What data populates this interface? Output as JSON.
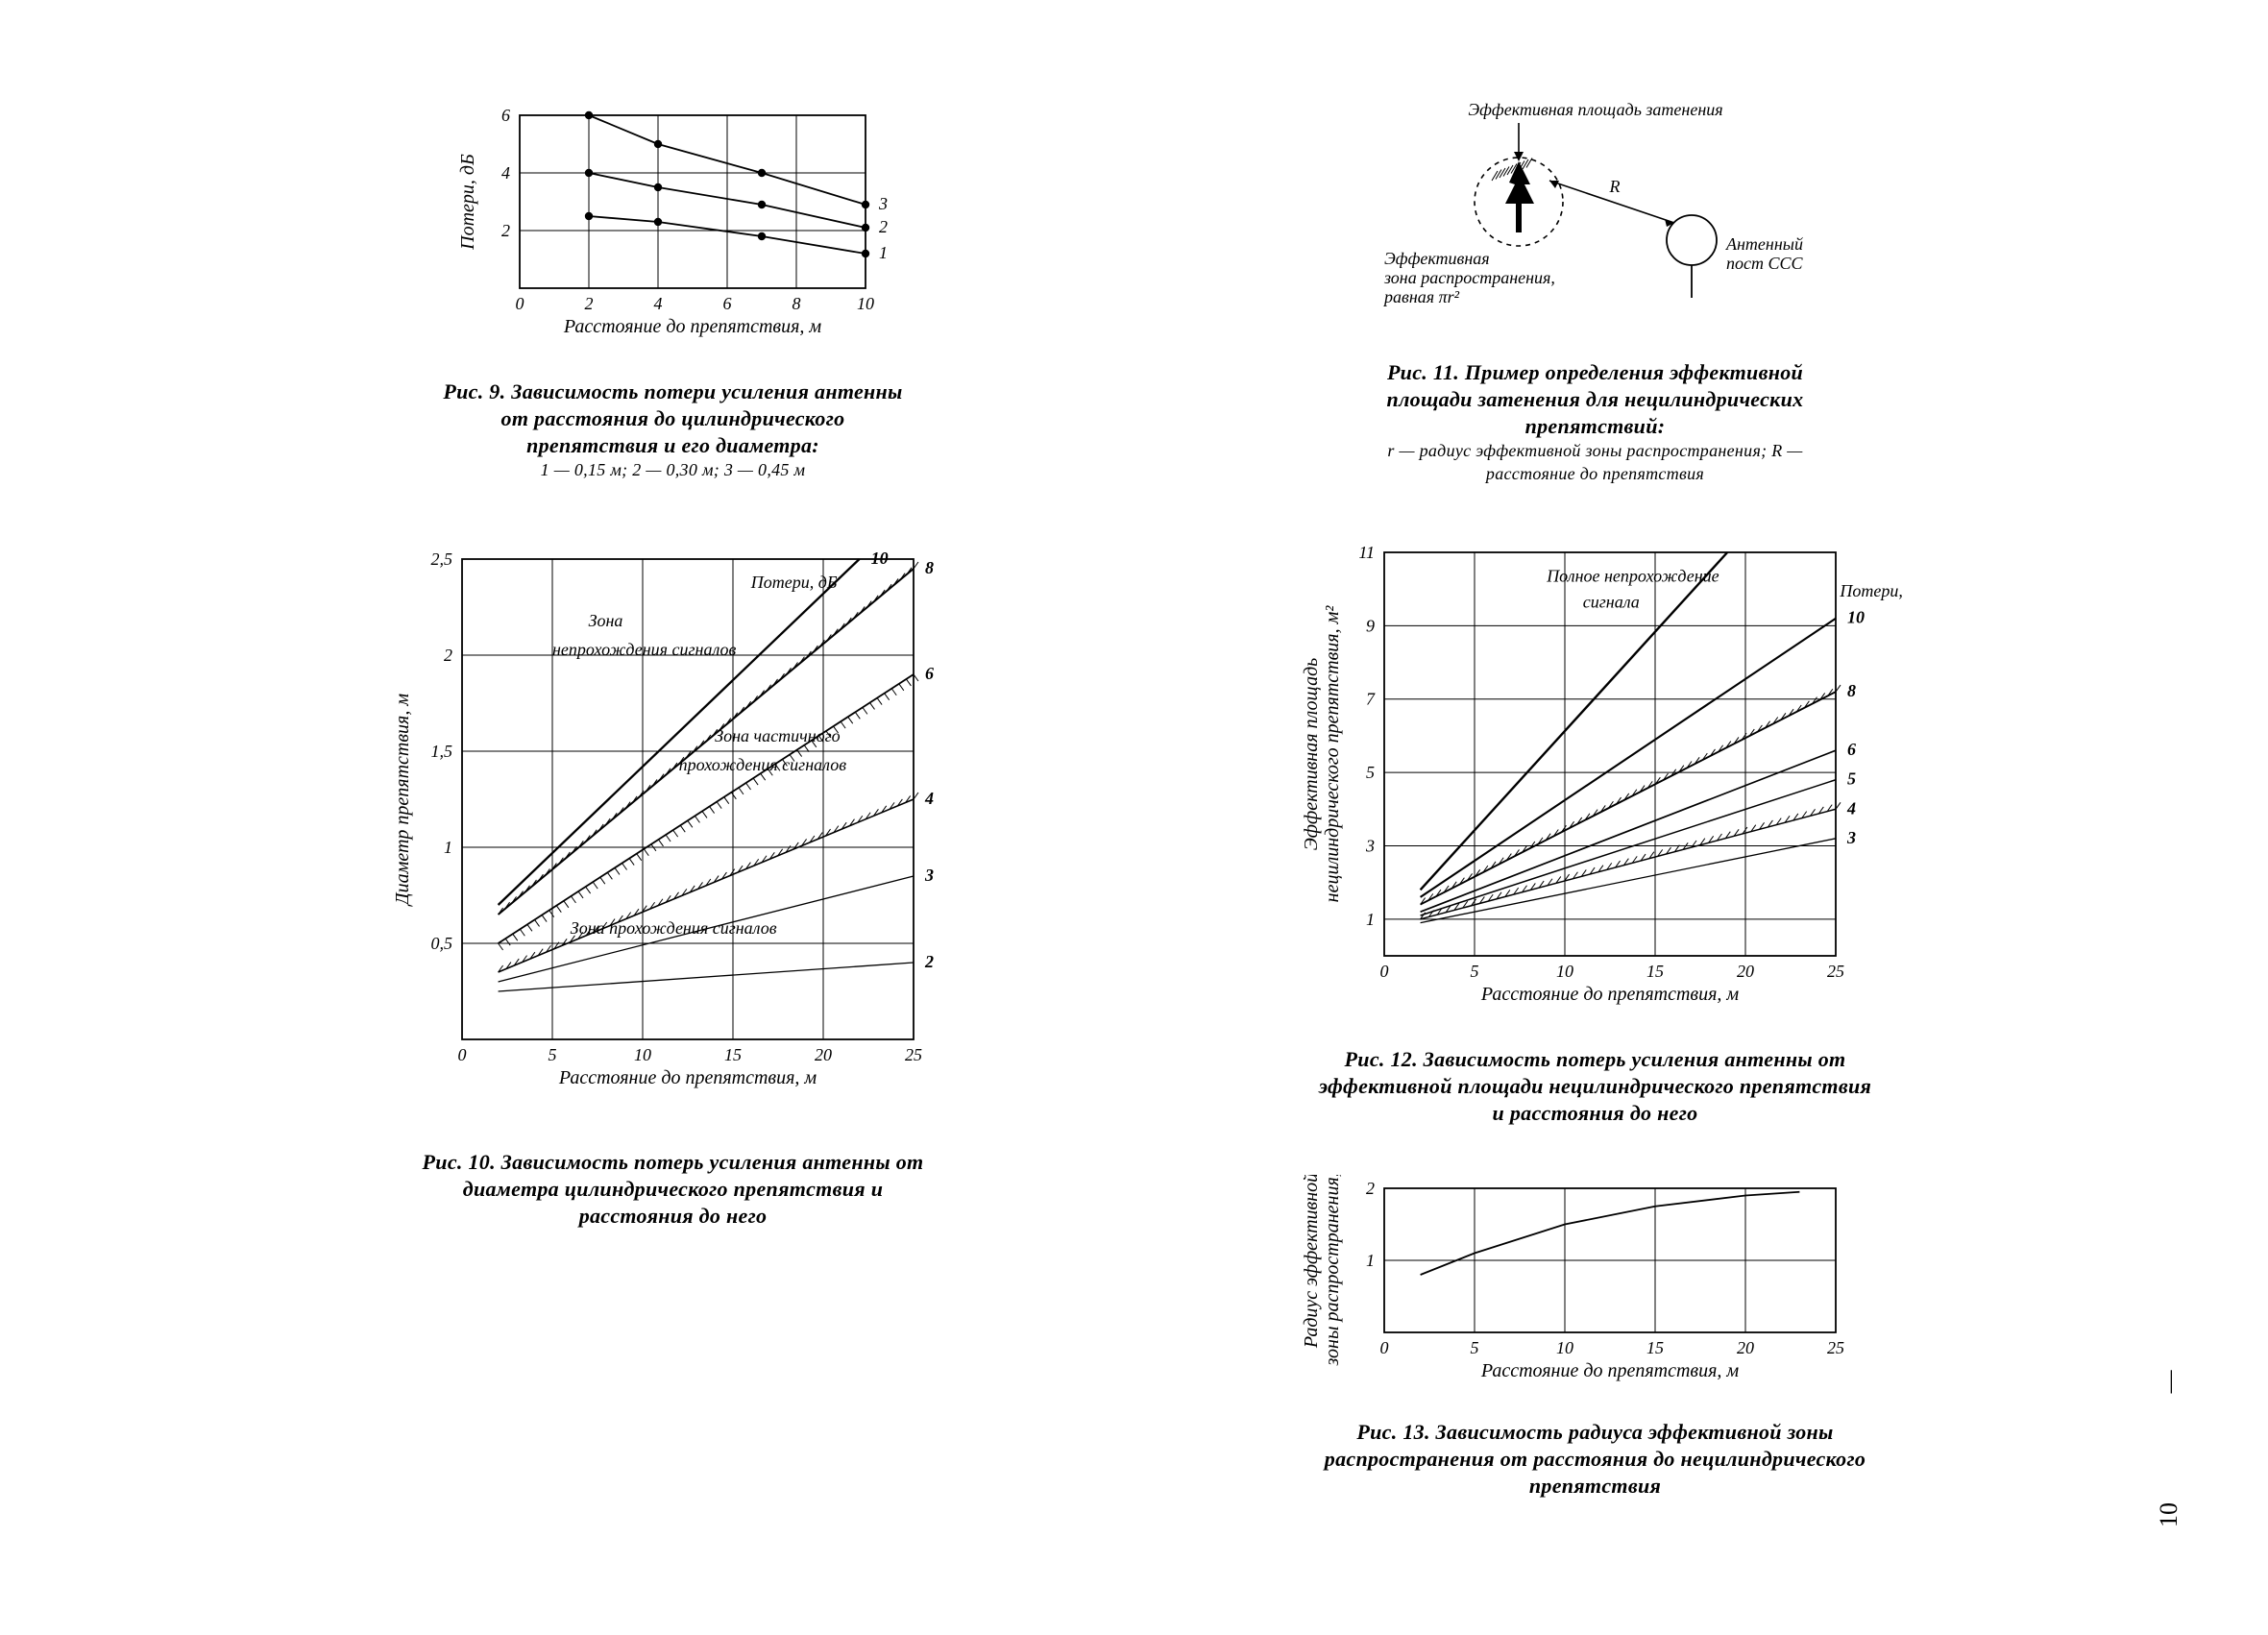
{
  "page_number": "10",
  "fig9": {
    "type": "line",
    "caption_main": "Рис. 9. Зависимость потери усиления антенны от расстояния до цилиндрического препятствия и его диаметра:",
    "caption_legend": "1 — 0,15 м; 2 — 0,30 м; 3 — 0,45 м",
    "xlabel": "Расстояние до препятствия, м",
    "ylabel": "Потери, дБ",
    "xlim": [
      0,
      10
    ],
    "ylim": [
      0,
      6
    ],
    "xticks": [
      0,
      2,
      4,
      6,
      8,
      10
    ],
    "yticks": [
      2,
      4,
      6
    ],
    "background_color": "#ffffff",
    "grid_color": "#000000",
    "line_color": "#000000",
    "marker_color": "#000000",
    "series": [
      {
        "label": "1",
        "points": [
          [
            2,
            2.5
          ],
          [
            4,
            2.3
          ],
          [
            7,
            1.8
          ],
          [
            10,
            1.2
          ]
        ]
      },
      {
        "label": "2",
        "points": [
          [
            2,
            4.0
          ],
          [
            4,
            3.5
          ],
          [
            7,
            2.9
          ],
          [
            10,
            2.1
          ]
        ]
      },
      {
        "label": "3",
        "points": [
          [
            2,
            6.0
          ],
          [
            4,
            5.0
          ],
          [
            7,
            4.0
          ],
          [
            10,
            2.9
          ]
        ]
      }
    ],
    "marker": "circle",
    "marker_size": 4.2,
    "line_width": 1.6
  },
  "fig10": {
    "type": "line",
    "caption_main": "Рис. 10. Зависимость потерь усиления антенны от диаметра цилиндрического препятствия и расстояния до него",
    "xlabel": "Расстояние до препятствия, м",
    "ylabel": "Диаметр препятствия, м",
    "xlim": [
      0,
      25
    ],
    "ylim": [
      0,
      2.5
    ],
    "xticks": [
      0,
      5,
      10,
      15,
      20,
      25
    ],
    "yticks": [
      0.5,
      1.0,
      1.5,
      2.0,
      2.5
    ],
    "annotation_top": "Потери, дБ",
    "zone_labels": {
      "no_pass": "Зона непрохождения сигналов",
      "partial": "Зона частичного прохождения сигналов",
      "pass": "Зона прохождения сигналов"
    },
    "series": [
      {
        "label": "2",
        "points": [
          [
            2,
            0.25
          ],
          [
            25,
            0.4
          ]
        ],
        "width": 1.3
      },
      {
        "label": "3",
        "points": [
          [
            2,
            0.3
          ],
          [
            25,
            0.85
          ]
        ],
        "width": 1.3
      },
      {
        "label": "4",
        "points": [
          [
            2,
            0.35
          ],
          [
            25,
            1.25
          ]
        ],
        "width": 1.6,
        "hatched_above": true
      },
      {
        "label": "6",
        "points": [
          [
            2,
            0.5
          ],
          [
            25,
            1.9
          ]
        ],
        "width": 1.8,
        "hatched_below": true
      },
      {
        "label": "8",
        "points": [
          [
            2,
            0.65
          ],
          [
            25,
            2.45
          ]
        ],
        "width": 2.0,
        "hatched_above": true
      },
      {
        "label": "10",
        "points": [
          [
            2,
            0.7
          ],
          [
            22,
            2.5
          ]
        ],
        "width": 2.3
      }
    ],
    "line_color": "#000000"
  },
  "fig11": {
    "type": "infographic",
    "caption_main": "Рис. 11. Пример определения эффективной площади затенения для нецилиндрических препятствий:",
    "caption_sub": "r — радиус эффективной зоны распространения; R — расстояние до препятствия",
    "title_top": "Эффективная площадь затенения",
    "label_left": "Эффективная зона распространения, равная πr²",
    "label_right_1": "Антенный",
    "label_right_2": "пост ССС",
    "R_label": "R",
    "line_color": "#000000"
  },
  "fig12": {
    "type": "line",
    "caption_main": "Рис. 12. Зависимость потерь усиления антенны от эффективной площади нецилиндрического препятствия и расстояния до него",
    "xlabel": "Расстояние до препятствия, м",
    "ylabel_line1": "Эффективная площадь",
    "ylabel_line2": "нецилиндрического препятствия, м²",
    "xlim": [
      0,
      25
    ],
    "ylim": [
      0,
      11
    ],
    "xticks": [
      0,
      5,
      10,
      15,
      20,
      25
    ],
    "yticks": [
      1,
      3,
      5,
      7,
      9,
      11
    ],
    "annotation_top": "Полное непрохождение сигнала",
    "annotation_right": "Потери, дБ",
    "series": [
      {
        "label": "3",
        "points": [
          [
            2,
            0.9
          ],
          [
            25,
            3.2
          ]
        ],
        "width": 1.3
      },
      {
        "label": "4",
        "points": [
          [
            2,
            1.0
          ],
          [
            25,
            4.0
          ]
        ],
        "width": 1.5,
        "hatched_above": true
      },
      {
        "label": "5",
        "points": [
          [
            2,
            1.1
          ],
          [
            25,
            4.8
          ]
        ],
        "width": 1.5
      },
      {
        "label": "6",
        "points": [
          [
            2,
            1.2
          ],
          [
            25,
            5.6
          ]
        ],
        "width": 1.7
      },
      {
        "label": "8",
        "points": [
          [
            2,
            1.4
          ],
          [
            25,
            7.2
          ]
        ],
        "width": 1.9,
        "hatched_above": true
      },
      {
        "label": "10",
        "points": [
          [
            2,
            1.6
          ],
          [
            25,
            9.2
          ]
        ],
        "width": 2.1
      },
      {
        "label": "",
        "points": [
          [
            2,
            1.8
          ],
          [
            19,
            11.0
          ]
        ],
        "width": 2.4
      }
    ],
    "line_color": "#000000"
  },
  "fig13": {
    "type": "line",
    "caption_main": "Рис. 13. Зависимость радиуса эффективной зоны распространения от расстояния до нецилиндрического препятствия",
    "xlabel": "Расстояние до препятствия, м",
    "ylabel_line1": "Радиус эффективной",
    "ylabel_line2": "зоны распространения, м",
    "xlim": [
      0,
      25
    ],
    "ylim": [
      0,
      2
    ],
    "xticks": [
      0,
      5,
      10,
      15,
      20,
      25
    ],
    "yticks": [
      1,
      2
    ],
    "series": [
      {
        "points": [
          [
            2,
            0.8
          ],
          [
            5,
            1.1
          ],
          [
            10,
            1.5
          ],
          [
            15,
            1.75
          ],
          [
            20,
            1.9
          ],
          [
            23,
            1.95
          ]
        ],
        "width": 1.8
      }
    ],
    "line_color": "#000000"
  }
}
